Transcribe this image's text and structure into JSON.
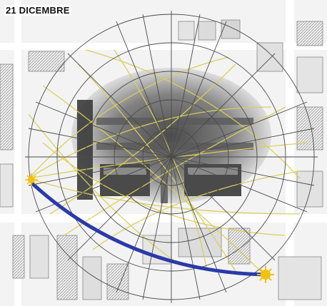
{
  "title": "21 DICEMBRE",
  "colors": {
    "background": "#ffffff",
    "map_lines": "#8a8a8a",
    "building_dark": "#3f3f3f",
    "building_mid": "#7a7a7a",
    "sun_path": "#2a3aa8",
    "sun_marker": "#f2c20c",
    "shadow_grid": "#d8cf5a"
  },
  "markers": [
    {
      "name": "sunrise",
      "icon": "sun-icon"
    },
    {
      "name": "sunset",
      "icon": "sun-icon"
    }
  ]
}
